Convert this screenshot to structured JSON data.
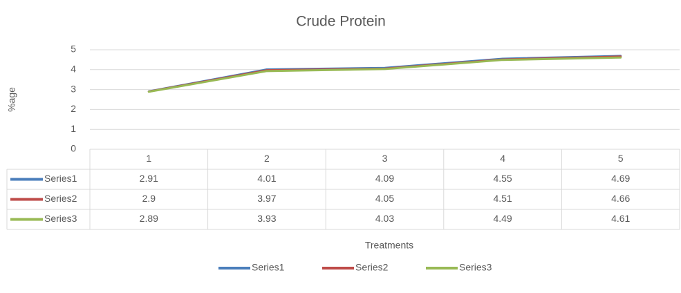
{
  "chart_data": {
    "type": "line",
    "title": "Crude Protein",
    "y_label": "%age",
    "x_label": "Treatments",
    "categories": [
      "1",
      "2",
      "3",
      "4",
      "5"
    ],
    "series": [
      {
        "name": "Series1",
        "color": "#4a7ebb",
        "values": [
          2.91,
          4.01,
          4.09,
          4.55,
          4.69
        ]
      },
      {
        "name": "Series2",
        "color": "#be4b48",
        "values": [
          2.9,
          3.97,
          4.05,
          4.51,
          4.66
        ]
      },
      {
        "name": "Series3",
        "color": "#98b954",
        "values": [
          2.89,
          3.93,
          4.03,
          4.49,
          4.61
        ]
      }
    ],
    "ylim": [
      0,
      5
    ],
    "yticks": [
      0,
      1,
      2,
      3,
      4,
      5
    ],
    "grid": true,
    "legend": "bottom",
    "data_table": true
  }
}
